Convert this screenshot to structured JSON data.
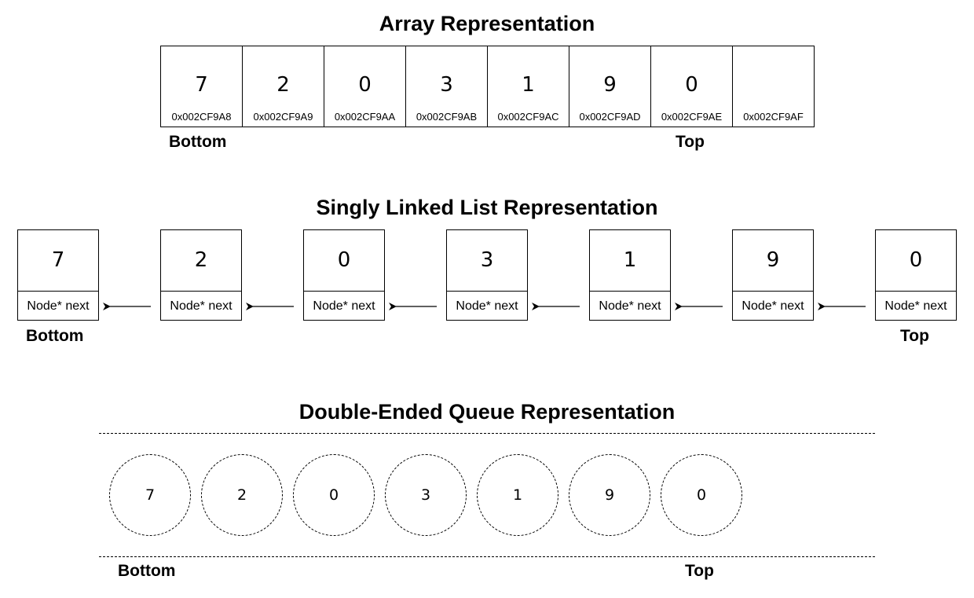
{
  "array": {
    "title": "Array Representation",
    "cells": [
      {
        "value": "7",
        "address": "0x002CF9A8"
      },
      {
        "value": "2",
        "address": "0x002CF9A9"
      },
      {
        "value": "0",
        "address": "0x002CF9AA"
      },
      {
        "value": "3",
        "address": "0x002CF9AB"
      },
      {
        "value": "1",
        "address": "0x002CF9AC"
      },
      {
        "value": "9",
        "address": "0x002CF9AD"
      },
      {
        "value": "0",
        "address": "0x002CF9AE"
      },
      {
        "value": "",
        "address": "0x002CF9AF"
      }
    ],
    "bottom_label": "Bottom",
    "top_label": "Top"
  },
  "list": {
    "title": "Singly Linked List Representation",
    "nodes": [
      {
        "value": "7",
        "next": "Node* next"
      },
      {
        "value": "2",
        "next": "Node* next"
      },
      {
        "value": "0",
        "next": "Node* next"
      },
      {
        "value": "3",
        "next": "Node* next"
      },
      {
        "value": "1",
        "next": "Node* next"
      },
      {
        "value": "9",
        "next": "Node* next"
      },
      {
        "value": "0",
        "next": "Node* next"
      }
    ],
    "bottom_label": "Bottom",
    "top_label": "Top"
  },
  "deque": {
    "title": "Double-Ended Queue Representation",
    "items": [
      "7",
      "2",
      "0",
      "3",
      "1",
      "9",
      "0"
    ],
    "bottom_label": "Bottom",
    "top_label": "Top"
  }
}
